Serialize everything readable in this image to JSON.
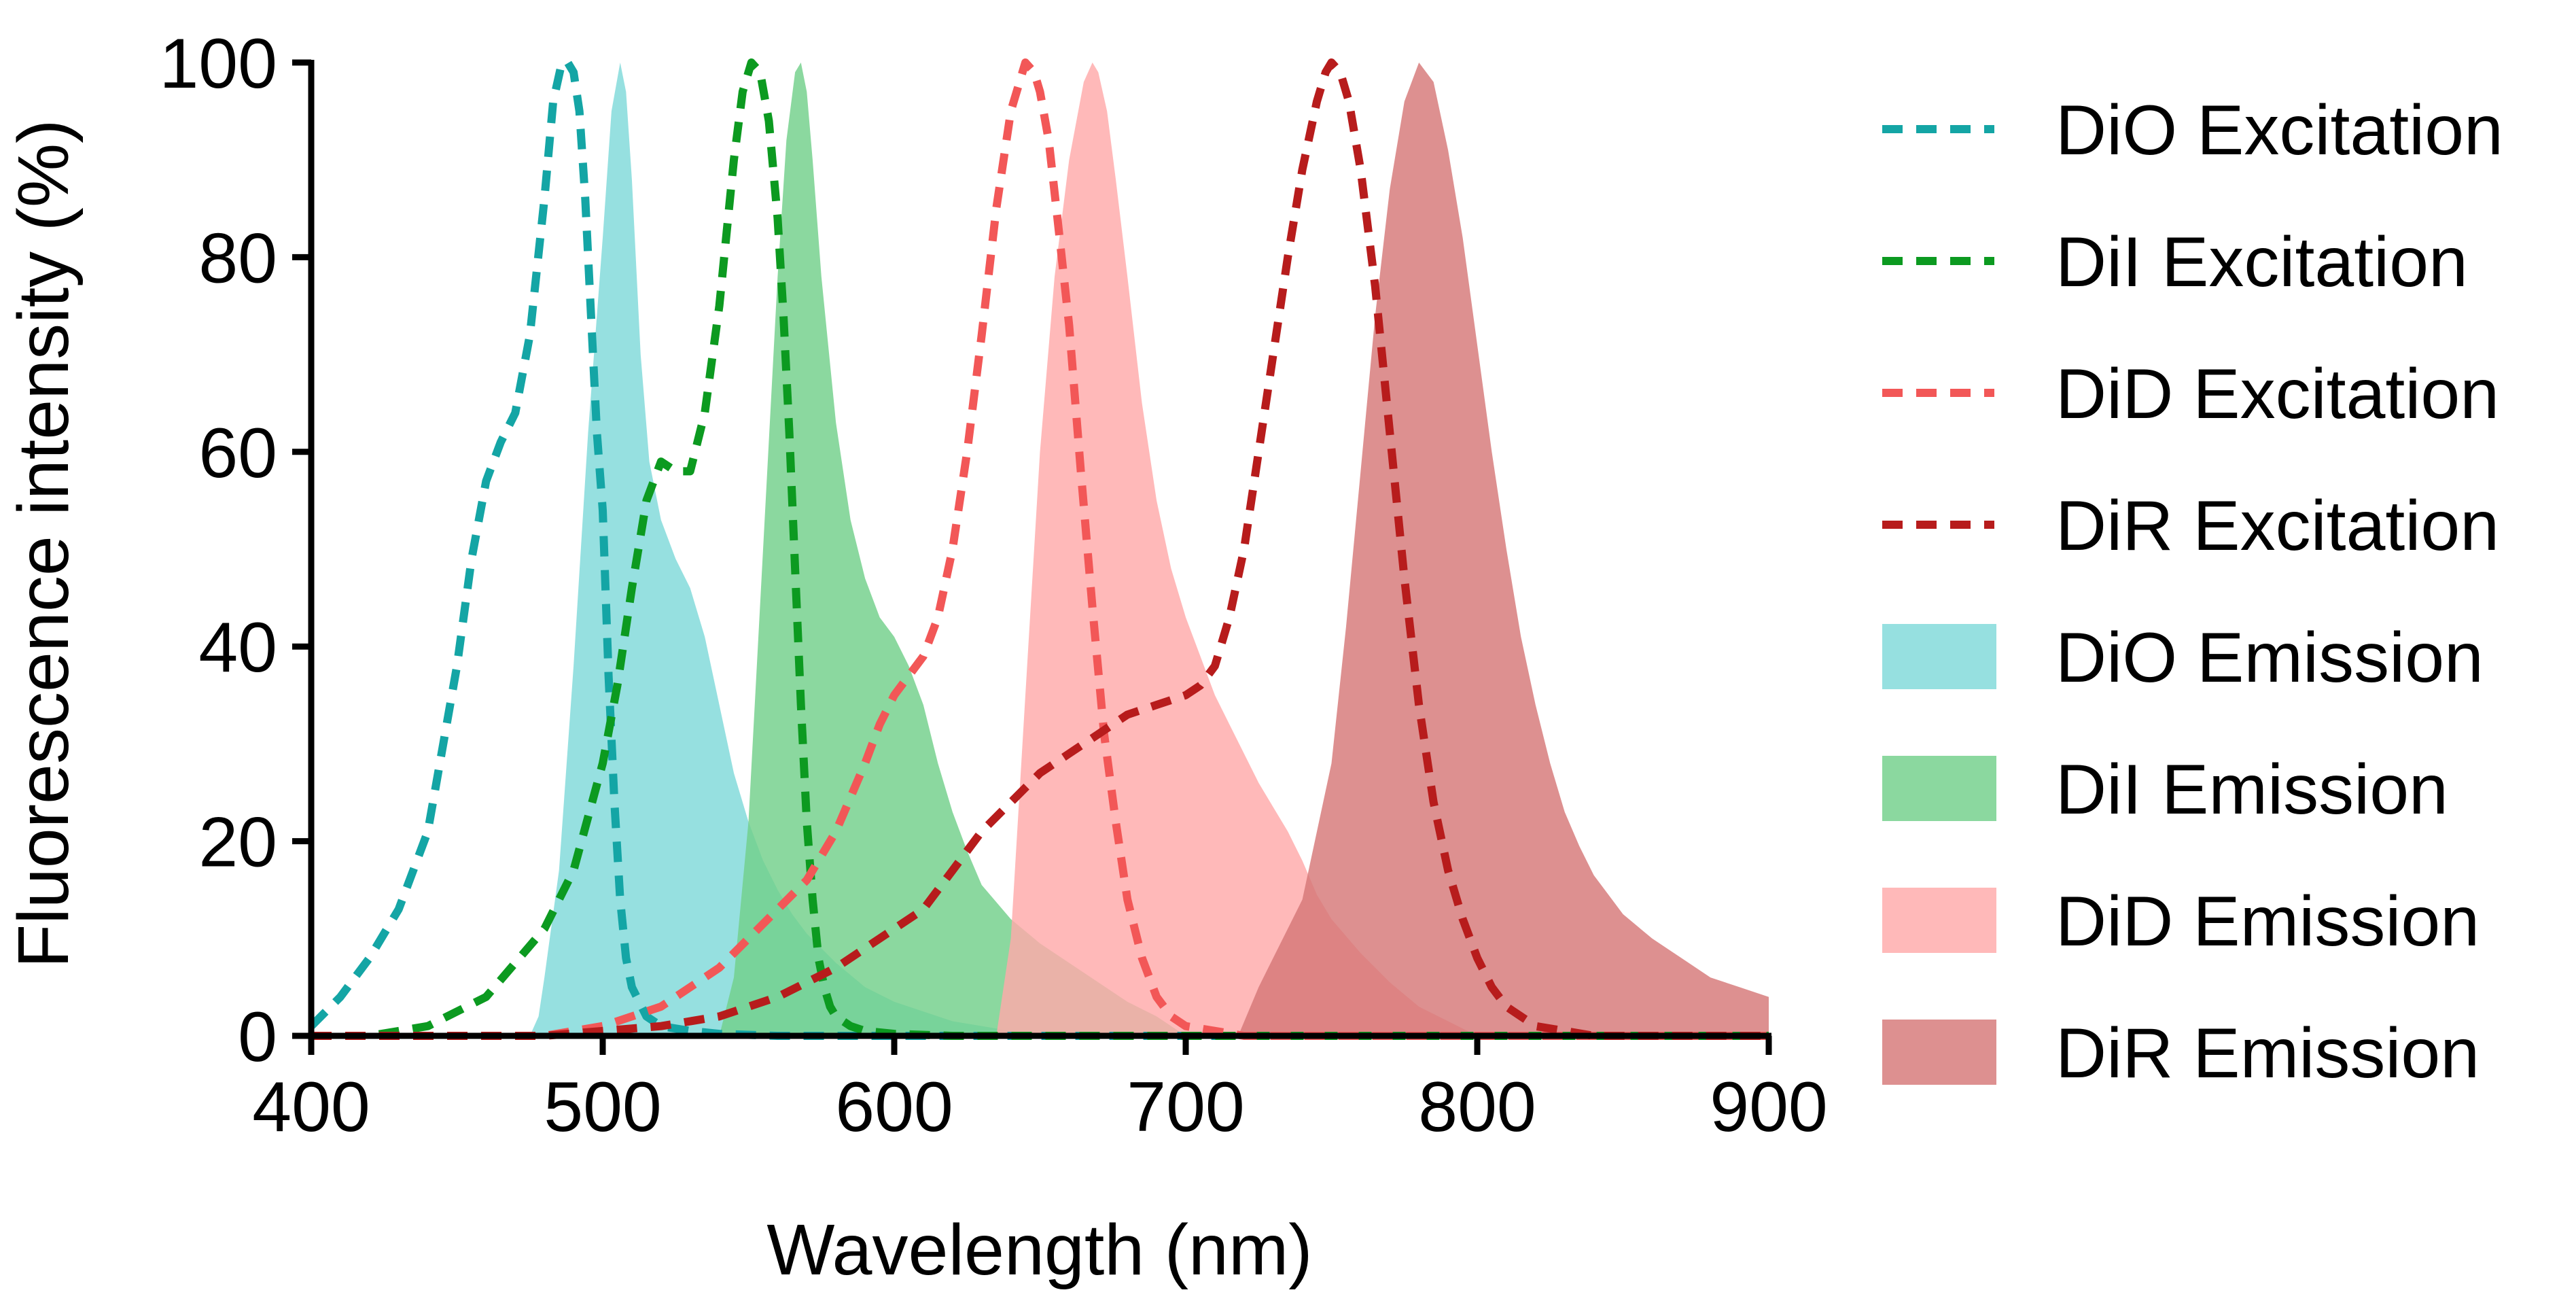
{
  "chart_data": {
    "type": "area",
    "title": "",
    "xlabel": "Wavelength (nm)",
    "ylabel": "Fluorescence intensity (%)",
    "xlim": [
      400,
      900
    ],
    "ylim": [
      0,
      100
    ],
    "xticks": [
      400,
      500,
      600,
      700,
      800,
      900
    ],
    "yticks": [
      0,
      20,
      40,
      60,
      80,
      100
    ],
    "grid": false,
    "legend_position": "right",
    "series": [
      {
        "name": "DiO Excitation",
        "kind": "line",
        "style": "dashed",
        "color": "#14a5a5",
        "x": [
          400,
          410,
          420,
          430,
          440,
          450,
          455,
          460,
          465,
          470,
          475,
          480,
          483,
          486,
          488,
          490,
          492,
          494,
          496,
          498,
          500,
          502,
          504,
          506,
          508,
          510,
          515,
          520,
          530,
          540,
          560,
          600,
          900
        ],
        "y": [
          1,
          4,
          8,
          13,
          21,
          38,
          49,
          57,
          61,
          64,
          72,
          86,
          96,
          100,
          100,
          99,
          95,
          86,
          74,
          62,
          54,
          37,
          24,
          14,
          8,
          5,
          2,
          1,
          0.5,
          0.2,
          0,
          0,
          0
        ]
      },
      {
        "name": "DiI Excitation",
        "kind": "line",
        "style": "dashed",
        "color": "#0c9a20",
        "x": [
          400,
          420,
          440,
          460,
          480,
          490,
          500,
          505,
          510,
          515,
          520,
          525,
          530,
          535,
          540,
          545,
          548,
          551,
          554,
          557,
          560,
          562,
          564,
          566,
          568,
          570,
          572,
          574,
          576,
          578,
          580,
          585,
          590,
          600,
          620,
          900
        ],
        "y": [
          0,
          0,
          1,
          4,
          11,
          17,
          28,
          36,
          46,
          55,
          59,
          58,
          58,
          64,
          75,
          90,
          97,
          100,
          99,
          94,
          84,
          74,
          62,
          48,
          34,
          22,
          14,
          8,
          5,
          3,
          2,
          1,
          0.5,
          0.2,
          0,
          0
        ]
      },
      {
        "name": "DiD Excitation",
        "kind": "line",
        "style": "dashed",
        "color": "#f25757",
        "x": [
          400,
          460,
          480,
          500,
          520,
          540,
          560,
          570,
          580,
          590,
          595,
          600,
          605,
          610,
          615,
          620,
          625,
          630,
          635,
          640,
          645,
          648,
          650,
          653,
          656,
          660,
          664,
          668,
          672,
          676,
          680,
          685,
          690,
          695,
          700,
          710,
          720,
          900
        ],
        "y": [
          0,
          0,
          0,
          1,
          3,
          7,
          13,
          16,
          21,
          28,
          32,
          35,
          37,
          39,
          43,
          50,
          60,
          72,
          85,
          95,
          100,
          99,
          97,
          92,
          84,
          73,
          58,
          44,
          31,
          22,
          14,
          8,
          4,
          2,
          1,
          0.5,
          0,
          0
        ]
      },
      {
        "name": "DiR Excitation",
        "kind": "line",
        "style": "dashed",
        "color": "#b71c1c",
        "x": [
          400,
          480,
          500,
          520,
          540,
          560,
          580,
          600,
          610,
          620,
          630,
          640,
          650,
          660,
          670,
          680,
          690,
          700,
          705,
          710,
          715,
          720,
          725,
          730,
          735,
          740,
          745,
          748,
          750,
          753,
          756,
          760,
          765,
          770,
          775,
          780,
          785,
          790,
          795,
          800,
          805,
          810,
          815,
          820,
          830,
          840,
          900
        ],
        "y": [
          0,
          0,
          0.5,
          1,
          2,
          4,
          7,
          11,
          13,
          17,
          21,
          24,
          27,
          29,
          31,
          33,
          34,
          35,
          36,
          38,
          43,
          50,
          60,
          70,
          80,
          89,
          96,
          99,
          100,
          99,
          96,
          89,
          77,
          62,
          47,
          34,
          24,
          17,
          12,
          8,
          5,
          3,
          2,
          1,
          0.5,
          0,
          0
        ]
      },
      {
        "name": "DiO Emission",
        "kind": "area",
        "color": "#7fd9d9",
        "x": [
          475,
          478,
          480,
          485,
          490,
          495,
          500,
          503,
          506,
          508,
          510,
          513,
          516,
          520,
          525,
          530,
          535,
          540,
          545,
          550,
          555,
          560,
          565,
          570,
          580,
          590,
          600,
          620,
          640,
          650
        ],
        "y": [
          0,
          2,
          6,
          17,
          38,
          62,
          82,
          95,
          100,
          97,
          88,
          70,
          59,
          53,
          49,
          46,
          41,
          34,
          27,
          22,
          18,
          15,
          12.5,
          10.5,
          7.5,
          5,
          3.5,
          1.5,
          0.5,
          0
        ]
      },
      {
        "name": "DiI Emission",
        "kind": "area",
        "color": "#72d08a",
        "x": [
          540,
          545,
          550,
          555,
          560,
          563,
          566,
          568,
          570,
          572,
          575,
          580,
          585,
          590,
          595,
          600,
          605,
          610,
          615,
          620,
          625,
          630,
          640,
          650,
          660,
          670,
          680,
          690,
          700
        ],
        "y": [
          0,
          6,
          22,
          50,
          78,
          92,
          99,
          100,
          97,
          90,
          78,
          63,
          53,
          47,
          43,
          41,
          38,
          34,
          28,
          23,
          19,
          15.5,
          12,
          9.5,
          7.5,
          5.5,
          3.5,
          2,
          0
        ]
      },
      {
        "name": "DiD Emission",
        "kind": "area",
        "color": "#ffaaaa",
        "x": [
          635,
          640,
          645,
          650,
          655,
          660,
          665,
          668,
          670,
          673,
          676,
          680,
          685,
          690,
          695,
          700,
          705,
          710,
          715,
          720,
          725,
          730,
          735,
          740,
          745,
          750,
          760,
          770,
          780,
          790,
          800
        ],
        "y": [
          0,
          10,
          35,
          60,
          78,
          90,
          98,
          100,
          99,
          95,
          88,
          78,
          65,
          55,
          48,
          43,
          39,
          35,
          32,
          29,
          26,
          23.5,
          21,
          18,
          14.5,
          12,
          8.5,
          5.5,
          3,
          1.5,
          0
        ]
      },
      {
        "name": "DiR Emission",
        "kind": "area",
        "color": "#d67878",
        "x": [
          718,
          725,
          730,
          740,
          750,
          755,
          760,
          765,
          770,
          775,
          780,
          785,
          790,
          795,
          800,
          805,
          810,
          815,
          820,
          825,
          830,
          835,
          840,
          845,
          850,
          860,
          870,
          880,
          890,
          900
        ],
        "y": [
          0,
          5,
          8,
          14,
          28,
          42,
          58,
          74,
          87,
          96,
          100,
          98,
          91,
          82,
          71,
          60,
          50,
          41,
          34,
          28,
          23,
          19.5,
          16.5,
          14.5,
          12.5,
          10,
          8,
          6,
          5,
          4
        ]
      }
    ]
  }
}
